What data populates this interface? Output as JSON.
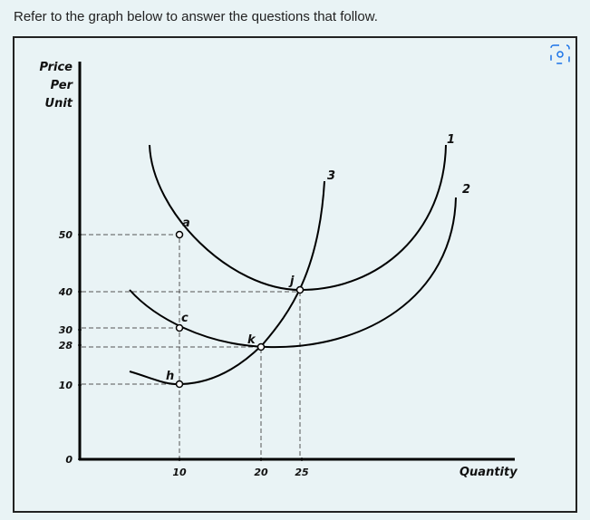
{
  "prompt": "Refer to the graph below to answer the questions that follow.",
  "graph": {
    "y_label": [
      "Price",
      "Per",
      "Unit"
    ],
    "x_label": "Quantity",
    "yticks": [
      0,
      10,
      28,
      30,
      40,
      50
    ],
    "xticks": [
      10,
      20,
      25
    ],
    "curves": [
      "1",
      "2",
      "3"
    ],
    "points": [
      "a",
      "c",
      "h",
      "j",
      "k"
    ]
  }
}
